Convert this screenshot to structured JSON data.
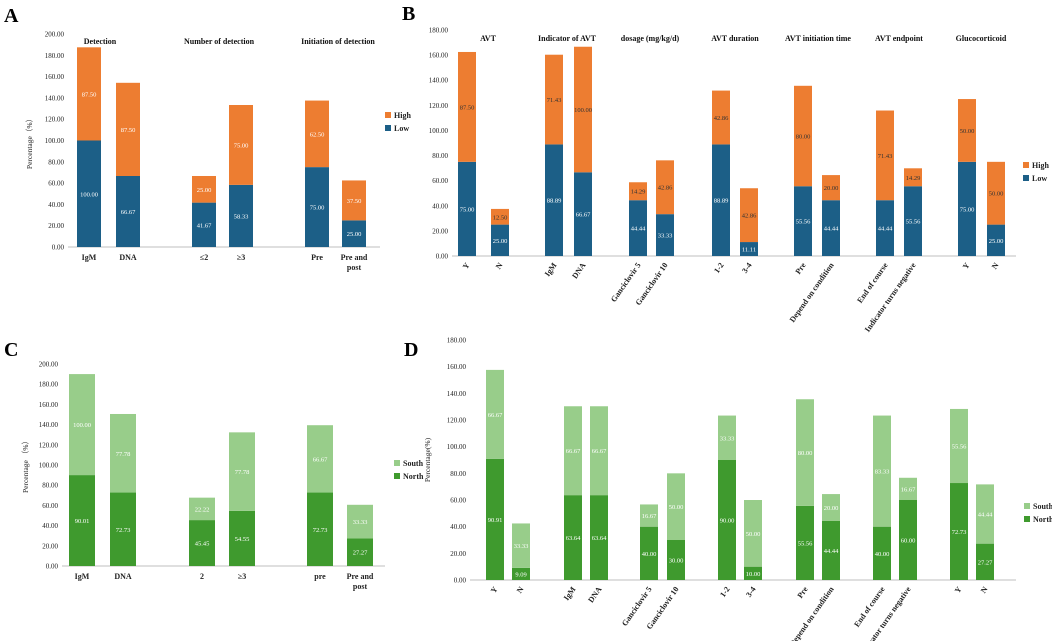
{
  "chart_data": [
    {
      "panel": "A",
      "type": "bar",
      "stacked": true,
      "ylabel": "Percentage（%）",
      "ylim": [
        0,
        200
      ],
      "yticks": [
        "0.00",
        "20.00",
        "40.00",
        "60.00",
        "80.00",
        "100.00",
        "120.00",
        "140.00",
        "160.00",
        "180.00",
        "200.00"
      ],
      "group_titles": [
        "Detection",
        "Number of detection",
        "Initiation of detection"
      ],
      "categories": [
        "IgM",
        "DNA",
        "≤2",
        "≥3",
        "Pre",
        "Pre and post"
      ],
      "category_group": [
        0,
        0,
        1,
        1,
        2,
        2
      ],
      "series": [
        {
          "name": "Low",
          "color": "#1c5f87",
          "values": [
            100.0,
            66.67,
            41.67,
            58.33,
            75.0,
            25.0
          ],
          "labels": [
            "100.00",
            "66.67",
            "41.67",
            "58.33",
            "75.00",
            "25.00"
          ]
        },
        {
          "name": "High",
          "color": "#ed7d31",
          "values": [
            87.5,
            87.5,
            25.0,
            75.0,
            62.5,
            37.5
          ],
          "labels": [
            "87.50",
            "87.50",
            "25.00",
            "75.00",
            "62.50",
            "37.50"
          ]
        }
      ],
      "legend": [
        "High",
        "Low"
      ]
    },
    {
      "panel": "B",
      "type": "bar",
      "stacked": true,
      "ylabel": "",
      "ylim": [
        0,
        180
      ],
      "yticks": [
        "0.00",
        "20.00",
        "40.00",
        "60.00",
        "80.00",
        "100.00",
        "120.00",
        "140.00",
        "160.00",
        "180.00"
      ],
      "group_titles": [
        "AVT",
        "Indicator of AVT",
        "dosage (mg/kg/d)",
        "AVT duration",
        "AVT initiation time",
        "AVT endpoint",
        "Glucocorticoid"
      ],
      "categories": [
        "Y",
        "N",
        "IgM",
        "DNA",
        "Ganciclovir 5",
        "Ganciclovir 10",
        "1-2",
        "3-4",
        "Pre",
        "Depend on condition",
        "End of course",
        "Indicator turns negative",
        "Y",
        "N"
      ],
      "category_group": [
        0,
        0,
        1,
        1,
        2,
        2,
        3,
        3,
        4,
        4,
        5,
        5,
        6,
        6
      ],
      "series": [
        {
          "name": "Low",
          "color": "#1c5f87",
          "values": [
            75.0,
            25.0,
            88.89,
            66.67,
            44.44,
            33.33,
            88.89,
            11.11,
            55.56,
            44.44,
            44.44,
            55.56,
            75.0,
            25.0
          ],
          "labels": [
            "75.00",
            "25.00",
            "88.89",
            "66.67",
            "44.44",
            "33.33",
            "88.89",
            "11.11",
            "55.56",
            "44.44",
            "44.44",
            "55.56",
            "75.00",
            "25.00"
          ]
        },
        {
          "name": "High",
          "color": "#ed7d31",
          "values": [
            87.5,
            12.5,
            71.43,
            100.0,
            14.29,
            42.86,
            42.86,
            42.86,
            80.0,
            20.0,
            71.43,
            14.29,
            50.0,
            50.0
          ],
          "labels": [
            "87.50",
            "12.50",
            "71.43",
            "100.00",
            "14.29",
            "42.86",
            "42.86",
            "42.86",
            "80.00",
            "20.00",
            "71.43",
            "14.29",
            "50.00",
            "50.00"
          ]
        }
      ],
      "legend": [
        "High",
        "Low"
      ]
    },
    {
      "panel": "C",
      "type": "bar",
      "stacked": true,
      "ylabel": "Percentage （%）",
      "ylim": [
        0,
        200
      ],
      "yticks": [
        "0.00",
        "20.00",
        "40.00",
        "60.00",
        "80.00",
        "100.00",
        "120.00",
        "140.00",
        "160.00",
        "180.00",
        "200.00"
      ],
      "categories": [
        "IgM",
        "DNA",
        "2",
        "≥3",
        "pre",
        "Pre and post"
      ],
      "series": [
        {
          "name": "North",
          "color": "#3f9a2e",
          "values": [
            90.01,
            72.73,
            45.45,
            54.55,
            72.73,
            27.27
          ],
          "labels": [
            "90.01",
            "72.73",
            "45.45",
            "54.55",
            "72.73",
            "27.27"
          ]
        },
        {
          "name": "South",
          "color": "#98cd8a",
          "values": [
            100.0,
            77.78,
            22.22,
            77.78,
            66.67,
            33.33
          ],
          "labels": [
            "100.00",
            "77.78",
            "22.22",
            "77.78",
            "66.67",
            "33.33"
          ]
        }
      ],
      "legend": [
        "South",
        "North"
      ]
    },
    {
      "panel": "D",
      "type": "bar",
      "stacked": true,
      "ylabel": "Percentage(%)",
      "ylim": [
        0,
        180
      ],
      "yticks": [
        "0.00",
        "20.00",
        "40.00",
        "60.00",
        "80.00",
        "100.00",
        "120.00",
        "140.00",
        "160.00",
        "180.00"
      ],
      "categories": [
        "Y",
        "N",
        "IgM",
        "DNA",
        "Ganciclovir 5",
        "Ganciclovir 10",
        "1-2",
        "3-4",
        "Pre",
        "Depend on condition",
        "End of course",
        "Indicator turns negative",
        "Y",
        "N"
      ],
      "series": [
        {
          "name": "North",
          "color": "#3f9a2e",
          "values": [
            90.91,
            9.09,
            63.64,
            63.64,
            40.0,
            30.0,
            90.0,
            10.0,
            55.56,
            44.44,
            40.0,
            60.0,
            72.73,
            27.27
          ],
          "labels": [
            "90.91",
            "9.09",
            "63.64",
            "63.64",
            "40.00",
            "30.00",
            "90.00",
            "10.00",
            "55.56",
            "44.44",
            "40.00",
            "60.00",
            "72.73",
            "27.27"
          ]
        },
        {
          "name": "South",
          "color": "#98cd8a",
          "values": [
            66.67,
            33.33,
            66.67,
            66.67,
            16.67,
            50.0,
            33.33,
            50.0,
            80.0,
            20.0,
            83.33,
            16.67,
            55.56,
            44.44
          ],
          "labels": [
            "66.67",
            "33.33",
            "66.67",
            "66.67",
            "16.67",
            "50.00",
            "33.33",
            "50.00",
            "80.00",
            "20.00",
            "83.33",
            "16.67",
            "55.56",
            "44.44"
          ]
        }
      ],
      "legend": [
        "South",
        "North"
      ]
    }
  ]
}
